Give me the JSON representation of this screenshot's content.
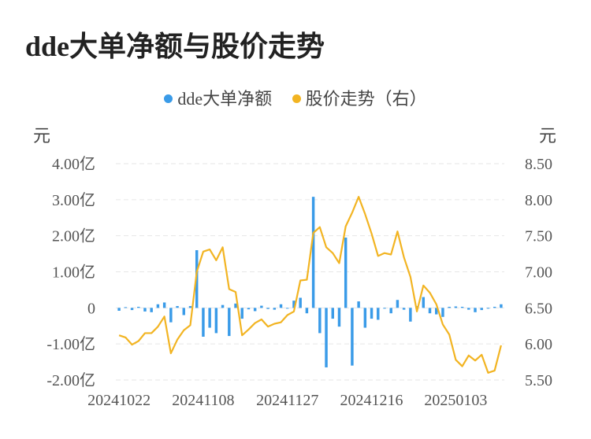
{
  "title": "dde大单净额与股价走势",
  "unit_left": "元",
  "unit_right": "元",
  "colors": {
    "bar": "#3a9be8",
    "line": "#f2b422",
    "grid": "#e6e6e6",
    "text": "#555555"
  },
  "chart_data": {
    "type": "bar+line",
    "grid": "horizontal dashed",
    "legend_position": "top-center",
    "legend": [
      "dde大单净额",
      "股价走势（右）"
    ],
    "y_left": {
      "min": -2.0,
      "max": 4.0,
      "ticks": [
        -2,
        -1,
        0,
        1,
        2,
        3,
        4
      ],
      "tick_labels": [
        "-2.00亿",
        "-1.00亿",
        "0",
        "1.00亿",
        "2.00亿",
        "3.00亿",
        "4.00亿"
      ]
    },
    "y_right": {
      "min": 5.5,
      "max": 8.5,
      "ticks": [
        5.5,
        6.0,
        6.5,
        7.0,
        7.5,
        8.0,
        8.5
      ],
      "tick_labels": [
        "5.50",
        "6.00",
        "6.50",
        "7.00",
        "7.50",
        "8.00",
        "8.50"
      ]
    },
    "x_tick_labels": [
      {
        "label": "20241022",
        "index": 0
      },
      {
        "label": "20241108",
        "index": 13
      },
      {
        "label": "20241127",
        "index": 26
      },
      {
        "label": "20241216",
        "index": 39
      },
      {
        "label": "20250103",
        "index": 52
      }
    ],
    "series": [
      {
        "name": "dde大单净额",
        "type": "bar",
        "axis": "left",
        "values": [
          -0.08,
          0.02,
          -0.06,
          0.03,
          -0.1,
          -0.12,
          0.1,
          0.15,
          -0.4,
          0.05,
          -0.2,
          0.05,
          1.6,
          -0.8,
          -0.55,
          -0.7,
          0.08,
          -0.78,
          0.12,
          -0.3,
          -0.04,
          -0.09,
          0.06,
          -0.03,
          -0.05,
          0.1,
          -0.02,
          0.2,
          0.28,
          -0.15,
          3.08,
          -0.7,
          -1.65,
          -0.3,
          -0.52,
          1.95,
          -1.6,
          0.18,
          -0.55,
          -0.3,
          -0.33,
          -0.02,
          -0.15,
          0.22,
          -0.05,
          -0.38,
          0.05,
          0.3,
          -0.15,
          -0.18,
          -0.25,
          0.03,
          0.04,
          0.03,
          -0.05,
          -0.12,
          -0.06,
          -0.02,
          0.03,
          0.1
        ]
      },
      {
        "name": "股价走势（右）",
        "type": "line",
        "axis": "right",
        "values": [
          6.12,
          6.09,
          5.99,
          6.04,
          6.15,
          6.15,
          6.24,
          6.38,
          5.87,
          6.06,
          6.19,
          6.26,
          7.0,
          7.28,
          7.31,
          7.16,
          7.34,
          6.76,
          6.72,
          6.12,
          6.2,
          6.29,
          6.34,
          6.24,
          6.28,
          6.3,
          6.4,
          6.45,
          6.88,
          6.89,
          7.54,
          7.62,
          7.34,
          7.26,
          7.12,
          7.63,
          7.82,
          8.04,
          7.8,
          7.53,
          7.22,
          7.26,
          7.24,
          7.56,
          7.2,
          6.93,
          6.45,
          6.81,
          6.71,
          6.55,
          6.27,
          6.13,
          5.78,
          5.69,
          5.84,
          5.77,
          5.85,
          5.6,
          5.63,
          5.98
        ]
      }
    ]
  }
}
